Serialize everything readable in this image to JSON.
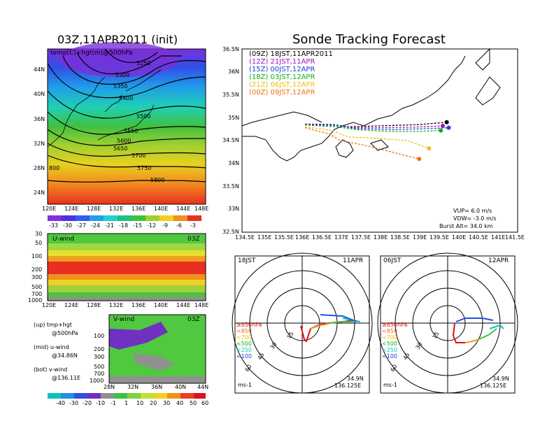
{
  "map_panel": {
    "title": "03Z,11APR2011 (init)",
    "field_label": "temp(C)+hgt(m)@500hPa",
    "lat_ticks": [
      "44N",
      "40N",
      "36N",
      "32N",
      "28N",
      "24N"
    ],
    "lon_ticks": [
      "120E",
      "124E",
      "128E",
      "132E",
      "136E",
      "140E",
      "144E",
      "148E"
    ],
    "contours": [
      "5250",
      "5300",
      "5350",
      "5400",
      "5500",
      "5550",
      "5600",
      "5650",
      "5700",
      "5750",
      "5800",
      "800"
    ],
    "temp_colorbar": [
      "-33",
      "-30",
      "-27",
      "-24",
      "-21",
      "-18",
      "-15",
      "-12",
      "-9",
      "-6",
      "-3"
    ]
  },
  "u_panel": {
    "title": "U-wind",
    "time": "03Z",
    "p_ticks": [
      "30",
      "50",
      "100",
      "200",
      "300",
      "500",
      "700",
      "1000"
    ],
    "lon_ticks": [
      "120E",
      "124E",
      "128E",
      "132E",
      "136E",
      "140E",
      "144E",
      "148E"
    ]
  },
  "v_panel": {
    "title": "V-wind",
    "time": "03Z",
    "p_ticks": [
      "100",
      "200",
      "300",
      "500",
      "700",
      "1000"
    ],
    "lat_ticks": [
      "28N",
      "32N",
      "36N",
      "40N",
      "44N"
    ]
  },
  "notes": {
    "up": "(up)  tmp+hgt",
    "up2": "@500hPa",
    "mid": "(mid)  u-wind",
    "mid2": "@34.86N",
    "bot": "(bot)  v-wind",
    "bot2": "@136.11E"
  },
  "wind_colorbar": [
    "-40",
    "-30",
    "-20",
    "-10",
    "-1",
    "1",
    "10",
    "20",
    "30",
    "40",
    "50",
    "60"
  ],
  "track_panel": {
    "title": "Sonde Tracking Forecast",
    "lat_ticks": [
      "36.5N",
      "36N",
      "35.5N",
      "35N",
      "34.5N",
      "34N",
      "33.5N",
      "33N",
      "32.5N"
    ],
    "lon_ticks": [
      "134.5E",
      "135E",
      "135.5E",
      "136E",
      "136.5E",
      "137E",
      "137.5E",
      "138E",
      "138.5E",
      "139E",
      "139.5E",
      "140E",
      "140.5E",
      "141E",
      "141.5E"
    ],
    "legend": [
      {
        "run": "(09Z)",
        "time": "18JST,11APR2011",
        "color": "#000000"
      },
      {
        "run": "(12Z)",
        "time": "21JST,11APR",
        "color": "#a010c0"
      },
      {
        "run": "(15Z)",
        "time": "00JST,12APR",
        "color": "#2040e0"
      },
      {
        "run": "(18Z)",
        "time": "03JST,12APR",
        "color": "#10b010"
      },
      {
        "run": "(21Z)",
        "time": "06JST,12APR",
        "color": "#e8c010"
      },
      {
        "run": "(00Z)",
        "time": "09JST,12APR",
        "color": "#f07010"
      }
    ],
    "vup": "VUP=  6.0  m/s",
    "vdw": "VDW=  -3.0  m/s",
    "burst": "Burst  Alt=  34.0  km"
  },
  "hodo_left": {
    "time": "18JST",
    "date": "11APR",
    "rings": [
      "15",
      "30",
      "45",
      "60"
    ],
    "unit": "ms-1",
    "lat": "34.9N",
    "lon": "136.125E",
    "levels": [
      "≥850hPa",
      "<850",
      "<700",
      "<500",
      "<250",
      "<100"
    ]
  },
  "hodo_right": {
    "time": "06JST",
    "date": "12APR",
    "rings": [
      "15",
      "30",
      "45",
      "60"
    ],
    "unit": "ms-1",
    "lat": "34.9N",
    "lon": "136.125E",
    "levels": [
      "≥850hPa",
      "<850",
      "<700",
      "<500",
      "<250",
      "<100"
    ]
  },
  "chart_data": {
    "type": "line",
    "title": "Sonde Tracking Forecast",
    "xlim": [
      134.5,
      141.5
    ],
    "ylim": [
      32.5,
      36.5
    ],
    "series": [
      {
        "name": "(09Z) 18JST,11APR2011",
        "color": "#000000",
        "x": [
          136.1,
          136.8,
          137.2,
          138.0,
          139.0,
          139.7
        ],
        "y": [
          34.86,
          34.85,
          34.8,
          34.82,
          34.85,
          34.9
        ]
      },
      {
        "name": "(12Z) 21JST,11APR",
        "color": "#a010c0",
        "x": [
          136.1,
          136.8,
          137.3,
          138.2,
          139.1,
          139.6
        ],
        "y": [
          34.86,
          34.84,
          34.78,
          34.78,
          34.8,
          34.82
        ]
      },
      {
        "name": "(15Z) 00JST,12APR",
        "color": "#2040e0",
        "x": [
          136.1,
          136.9,
          137.4,
          138.3,
          139.2,
          139.75
        ],
        "y": [
          34.85,
          34.83,
          34.76,
          34.74,
          34.76,
          34.78
        ]
      },
      {
        "name": "(18Z) 03JST,12APR",
        "color": "#10b010",
        "x": [
          136.1,
          136.9,
          137.4,
          138.2,
          139.0,
          139.55
        ],
        "y": [
          34.84,
          34.8,
          34.74,
          34.7,
          34.7,
          34.72
        ]
      },
      {
        "name": "(21Z) 06JST,12APR",
        "color": "#e8c010",
        "x": [
          136.1,
          136.8,
          137.2,
          137.9,
          138.7,
          139.25
        ],
        "y": [
          34.8,
          34.72,
          34.58,
          34.55,
          34.5,
          34.33
        ]
      },
      {
        "name": "(00Z) 09JST,12APR",
        "color": "#f07010",
        "x": [
          136.1,
          136.7,
          137.0,
          137.6,
          138.3,
          139.0
        ],
        "y": [
          34.78,
          34.65,
          34.5,
          34.4,
          34.25,
          34.1
        ]
      }
    ]
  }
}
